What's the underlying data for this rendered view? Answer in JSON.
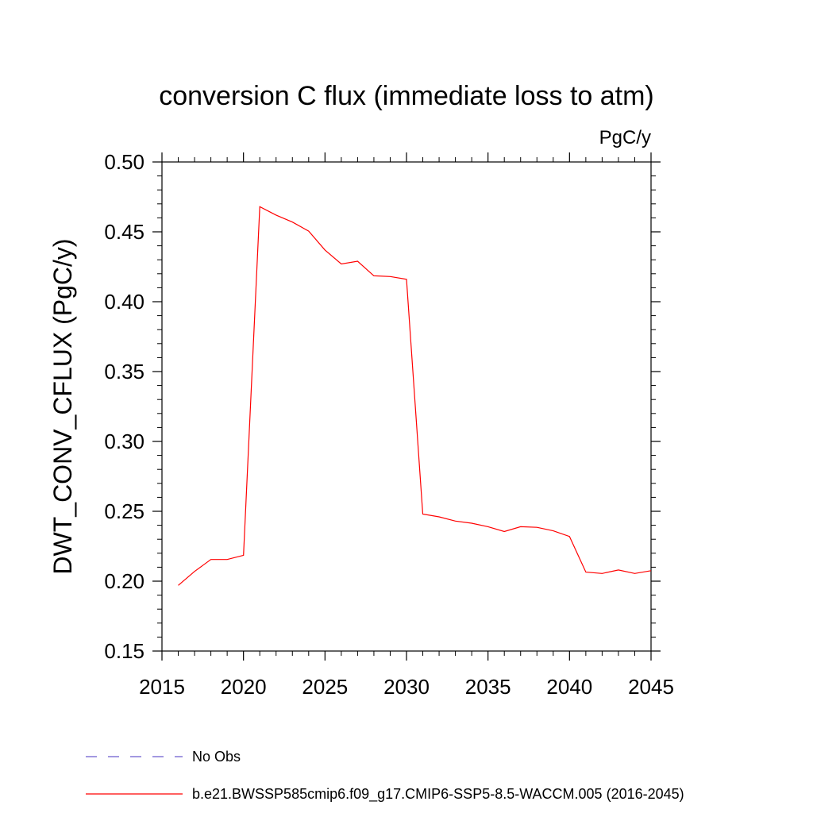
{
  "chart_data": {
    "type": "line",
    "title": "conversion C flux (immediate loss to atm)",
    "units_label": "PgC/y",
    "ylabel": "DWT_CONV_CFLUX  (PgC/y)",
    "xlabel": "",
    "xlim": [
      2015,
      2045
    ],
    "ylim": [
      0.15,
      0.5
    ],
    "x_ticks": [
      "2015",
      "2020",
      "2025",
      "2030",
      "2035",
      "2040",
      "2045"
    ],
    "y_ticks": [
      "0.15",
      "0.20",
      "0.25",
      "0.30",
      "0.35",
      "0.40",
      "0.45",
      "0.50"
    ],
    "grid": false,
    "legend_position": "bottom",
    "series": [
      {
        "name": "No Obs",
        "color": "#6a5acd",
        "style": "dashed",
        "x": [],
        "y": []
      },
      {
        "name": "b.e21.BWSSP585cmip6.f09_g17.CMIP6-SSP5-8.5-WACCM.005 (2016-2045)",
        "color": "#ff0000",
        "style": "solid",
        "x": [
          2016,
          2017,
          2018,
          2019,
          2020,
          2021,
          2022,
          2023,
          2024,
          2025,
          2026,
          2027,
          2028,
          2029,
          2030,
          2031,
          2032,
          2033,
          2034,
          2035,
          2036,
          2037,
          2038,
          2039,
          2040,
          2041,
          2042,
          2043,
          2044,
          2045
        ],
        "y": [
          0.197,
          0.207,
          0.2155,
          0.2155,
          0.2185,
          0.468,
          0.462,
          0.457,
          0.4505,
          0.437,
          0.427,
          0.429,
          0.4185,
          0.418,
          0.416,
          0.248,
          0.246,
          0.243,
          0.2415,
          0.239,
          0.2355,
          0.239,
          0.2385,
          0.236,
          0.232,
          0.2065,
          0.2055,
          0.208,
          0.2055,
          0.2075
        ]
      }
    ]
  }
}
